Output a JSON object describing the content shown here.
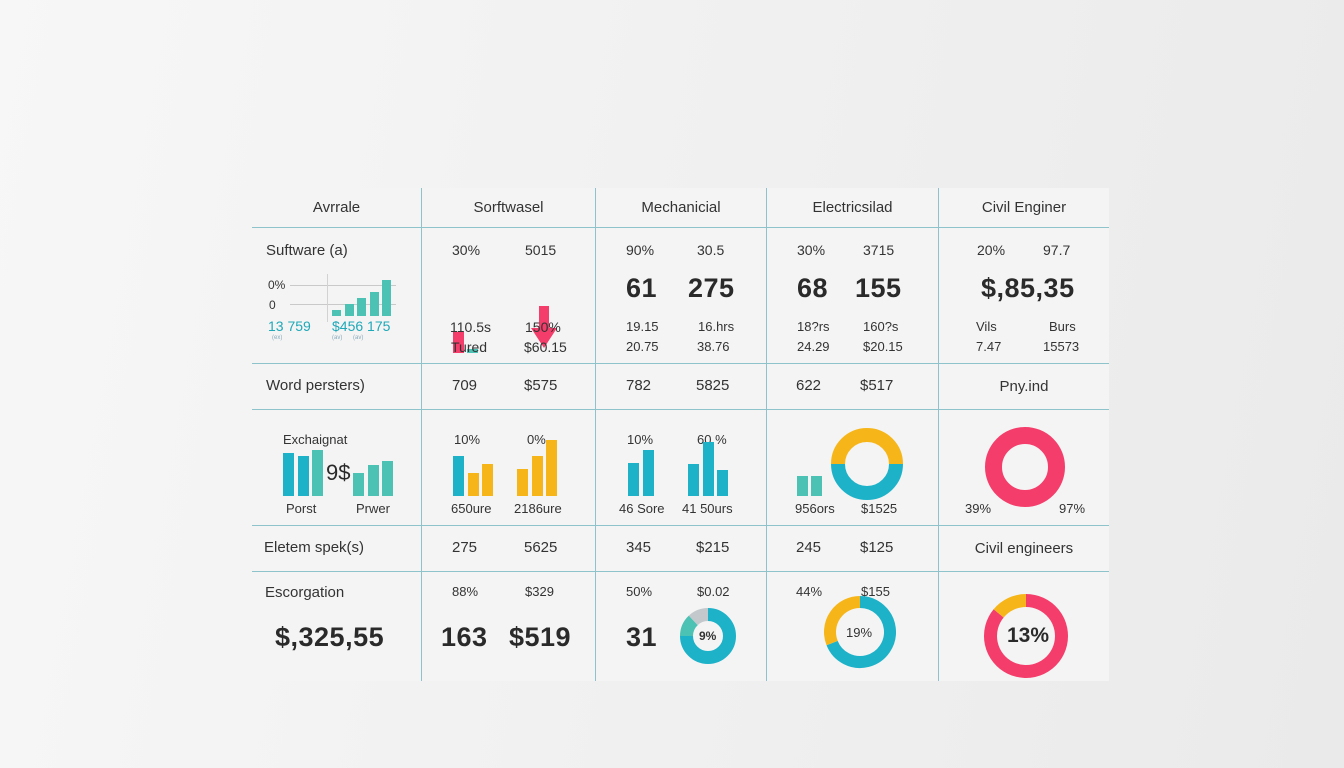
{
  "colors": {
    "teal": "#1eb2c9",
    "mint": "#4cc2b4",
    "yellow": "#f6b61a",
    "pink": "#f43d6a",
    "gray": "#c3c8cc",
    "grid": "#8fc3cc"
  },
  "header": {
    "columns": [
      "Avrrale",
      "Sorftwasel",
      "Mechanicial",
      "Electricsilad",
      "Civil Enginer"
    ]
  },
  "row1": {
    "col0": {
      "title": "Suftware (a)",
      "axis_labels": [
        "0%",
        "0"
      ],
      "value_a": "13 759",
      "value_b": "$456 175",
      "sub_a": "(ex)",
      "sub_b1": "(av)",
      "sub_b2": "(av)",
      "mini_bar_values": [
        1,
        2,
        3,
        4,
        6
      ]
    },
    "col1": {
      "top_a": "30%",
      "top_b": "5015",
      "mini_bar_values": [
        3,
        0.6
      ],
      "trend_icon": "arrow-down",
      "mid_a": "110.5s",
      "mid_b": "150%",
      "bot_a": "Tured",
      "bot_b": "$60.15"
    },
    "col2": {
      "top_a": "90%",
      "top_b": "30.5",
      "big_a": "61",
      "big_b": "275",
      "mid_a": "19.15",
      "mid_b": "16.hrs",
      "bot_a": "20.75",
      "bot_b": "38.76"
    },
    "col3": {
      "top_a": "30%",
      "top_b": "3715",
      "big_a": "68",
      "big_b": "155",
      "mid_a": "18?rs",
      "mid_b": "160?s",
      "bot_a": "24.29",
      "bot_b": "$20.15"
    },
    "col4": {
      "top_a": "20%",
      "top_b": "97.7",
      "big": "$,85,35",
      "mid_a": "Vils",
      "mid_b": "Burs",
      "bot_a": "7.47",
      "bot_b": "15573"
    }
  },
  "row2": {
    "label": "Word persters)",
    "values": [
      [
        "709",
        "$575"
      ],
      [
        "782",
        "5825"
      ],
      [
        "622",
        "$517"
      ]
    ],
    "col4_label": "Pny.ind"
  },
  "row3": {
    "col0": {
      "title": "Exchaignat",
      "center_text": "9$",
      "left_bar_values": [
        7,
        6.6,
        7.5
      ],
      "right_bar_values": [
        3.4,
        4.6,
        5.2
      ],
      "foot_a": "Porst",
      "foot_b": "Prwer"
    },
    "col1": {
      "top_a": "10%",
      "top_b": "0%",
      "left_bar_values": [
        5.2,
        3.0,
        4.2
      ],
      "right_bar_values": [
        4.3,
        6.4,
        9.0
      ],
      "foot_a": "650ure",
      "foot_b": "2186ure"
    },
    "col2": {
      "top_a": "10%",
      "top_b": "60.%",
      "left_bar_values": [
        5.0,
        7.0
      ],
      "right_bar_values": [
        6.0,
        10.0,
        4.8
      ],
      "foot_a": "46 Sore",
      "foot_b": "41 50urs"
    },
    "col3": {
      "bar_values": [
        1,
        1
      ],
      "donut": [
        {
          "label": "yellow",
          "value": 50
        },
        {
          "label": "teal",
          "value": 50
        }
      ],
      "foot_a": "956ors",
      "foot_b": "$1525"
    },
    "col4": {
      "donut": [
        {
          "label": "pink",
          "value": 100
        }
      ],
      "foot_a": "39%",
      "foot_b": "97%"
    }
  },
  "row4": {
    "label": "Eletem spek(s)",
    "values": [
      [
        "275",
        "5625"
      ],
      [
        "345",
        "$215"
      ],
      [
        "245",
        "$125"
      ]
    ],
    "col4_label": "Civil engineers"
  },
  "row5": {
    "col0": {
      "title": "Escorgation",
      "big": "$,325,55"
    },
    "col1": {
      "top_a": "88%",
      "top_b": "$329",
      "big_a": "163",
      "big_b": "$519"
    },
    "col2": {
      "top_a": "50%",
      "top_b": "$0.02",
      "big": "31",
      "donut_center": "9%",
      "donut": [
        {
          "label": "teal",
          "value": 75
        },
        {
          "label": "mint",
          "value": 13
        },
        {
          "label": "gray",
          "value": 12
        }
      ]
    },
    "col3": {
      "top_a": "44%",
      "top_b": "$155",
      "donut_center": "19%",
      "donut": [
        {
          "label": "teal",
          "value": 69
        },
        {
          "label": "yellow",
          "value": 31
        }
      ]
    },
    "col4": {
      "donut_center": "13%",
      "donut": [
        {
          "label": "pink",
          "value": 86
        },
        {
          "label": "yellow",
          "value": 14
        }
      ]
    }
  }
}
